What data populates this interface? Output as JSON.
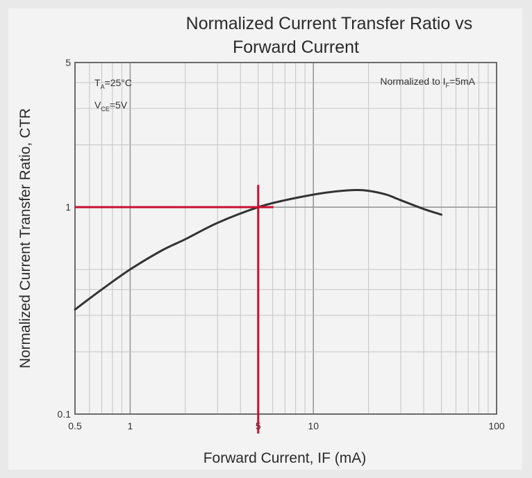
{
  "chart_data": {
    "type": "line",
    "title": "Normalized Current Transfer Ratio vs",
    "subtitle": "Forward Current",
    "xlabel": "Forward Current, IF (mA)",
    "ylabel": "Normalized Current Transfer Ratio, CTR",
    "xscale": "log",
    "yscale": "log",
    "xlim": [
      0.5,
      100
    ],
    "ylim": [
      0.1,
      5
    ],
    "grid": true,
    "xticks": [
      {
        "value": 0.5,
        "label": "0.5"
      },
      {
        "value": 1,
        "label": "1"
      },
      {
        "value": 5,
        "label": "5"
      },
      {
        "value": 10,
        "label": "10"
      },
      {
        "value": 100,
        "label": "100"
      }
    ],
    "yticks": [
      {
        "value": 0.1,
        "label": "0.1"
      },
      {
        "value": 1,
        "label": "1"
      },
      {
        "value": 5,
        "label": "5"
      }
    ],
    "series": [
      {
        "x": [
          0.5,
          0.7,
          1,
          1.5,
          2,
          3,
          5,
          7,
          10,
          13,
          17,
          20,
          25,
          30,
          40,
          50
        ],
        "y": [
          0.32,
          0.4,
          0.5,
          0.62,
          0.7,
          0.84,
          1.0,
          1.08,
          1.15,
          1.19,
          1.21,
          1.2,
          1.15,
          1.08,
          0.98,
          0.92
        ]
      }
    ],
    "reference_lines": {
      "x": 5,
      "y": 1,
      "color": "#c8102e"
    },
    "annotations": {
      "ta": {
        "main": "T",
        "sub": "A",
        "rest": "=25°C"
      },
      "vce": {
        "main": "V",
        "sub": "CE",
        "rest": "=5V"
      },
      "norm": {
        "main": "Normalized to I",
        "sub": "F",
        "rest": "=5mA"
      }
    },
    "colors": {
      "curve": "#333333",
      "grid": "#c4c4c4",
      "reference": "#c8102e"
    }
  }
}
